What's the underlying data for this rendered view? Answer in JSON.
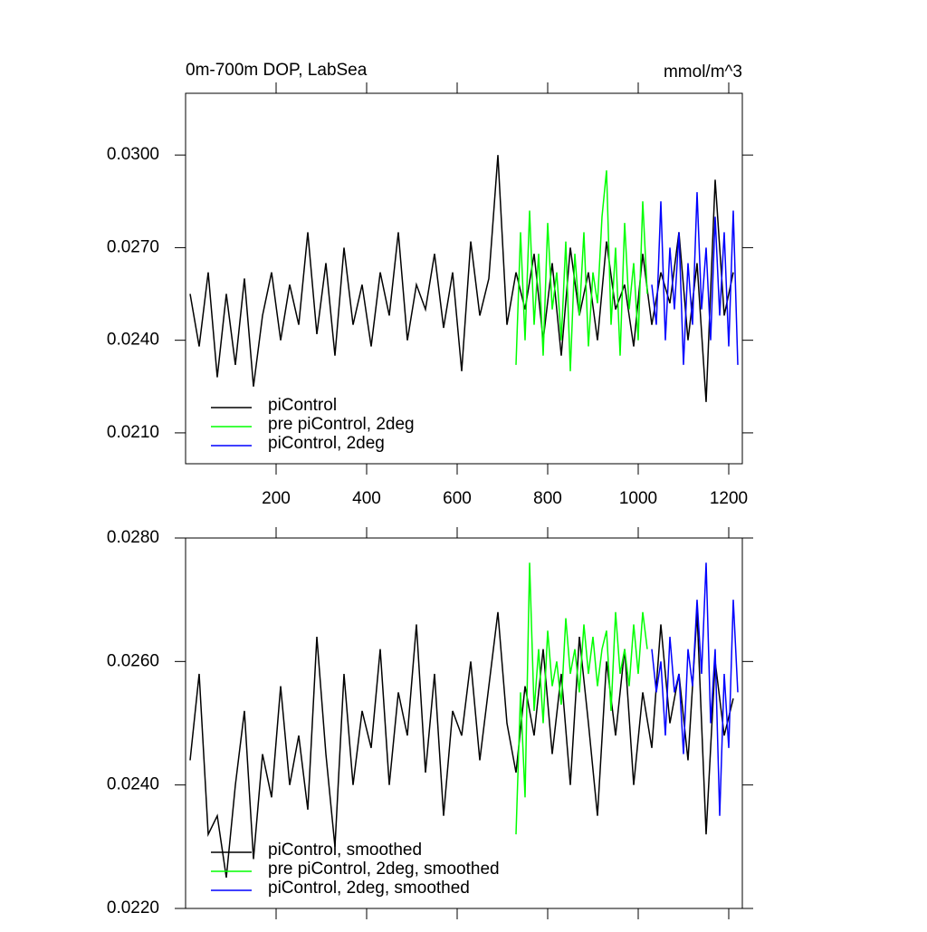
{
  "chart_data": [
    {
      "type": "line",
      "title": "0m-700m DOP, LabSea",
      "units": "mmol/m^3",
      "xlim": [
        0,
        1230
      ],
      "xticks": [
        200,
        400,
        600,
        800,
        1000,
        1200
      ],
      "xtick_labels": true,
      "ylim": [
        0.02,
        0.032
      ],
      "yticks": [
        {
          "value": 0.021,
          "label": "0.0210"
        },
        {
          "value": 0.024,
          "label": "0.0240"
        },
        {
          "value": 0.027,
          "label": "0.0270"
        },
        {
          "value": 0.03,
          "label": "0.0300"
        }
      ],
      "legend": "lower left",
      "series": [
        {
          "name": "piControl",
          "color": "#000000",
          "x": [
            10,
            30,
            50,
            70,
            90,
            110,
            130,
            150,
            170,
            190,
            210,
            230,
            250,
            270,
            290,
            310,
            330,
            350,
            370,
            390,
            410,
            430,
            450,
            470,
            490,
            510,
            530,
            550,
            570,
            590,
            610,
            630,
            650,
            670,
            690,
            710,
            730,
            750,
            770,
            790,
            810,
            830,
            850,
            870,
            890,
            910,
            930,
            950,
            970,
            990,
            1010,
            1030,
            1050,
            1070,
            1090,
            1110,
            1130,
            1150,
            1170,
            1190,
            1210
          ],
          "values": [
            0.0255,
            0.0238,
            0.0262,
            0.0228,
            0.0255,
            0.0232,
            0.026,
            0.0225,
            0.0248,
            0.0262,
            0.024,
            0.0258,
            0.0245,
            0.0275,
            0.0242,
            0.0265,
            0.0235,
            0.027,
            0.0245,
            0.0258,
            0.0238,
            0.0262,
            0.0248,
            0.0275,
            0.024,
            0.0258,
            0.025,
            0.0268,
            0.0244,
            0.0262,
            0.023,
            0.0272,
            0.0248,
            0.026,
            0.03,
            0.0245,
            0.0262,
            0.025,
            0.0268,
            0.024,
            0.0265,
            0.0235,
            0.027,
            0.0248,
            0.0262,
            0.024,
            0.0272,
            0.025,
            0.0258,
            0.0238,
            0.0268,
            0.0245,
            0.0262,
            0.0252,
            0.0275,
            0.024,
            0.0265,
            0.022,
            0.0292,
            0.0248,
            0.0262
          ]
        },
        {
          "name": "pre piControl, 2deg",
          "color": "#00ff00",
          "x": [
            730,
            740,
            750,
            760,
            770,
            780,
            790,
            800,
            810,
            820,
            830,
            840,
            850,
            860,
            870,
            880,
            890,
            900,
            910,
            920,
            930,
            940,
            950,
            960,
            970,
            980,
            990,
            1000,
            1010,
            1020
          ],
          "values": [
            0.0232,
            0.0275,
            0.024,
            0.0282,
            0.0245,
            0.0268,
            0.0235,
            0.0278,
            0.025,
            0.0262,
            0.024,
            0.0272,
            0.023,
            0.0268,
            0.0248,
            0.0275,
            0.0238,
            0.0262,
            0.0252,
            0.028,
            0.0295,
            0.0245,
            0.027,
            0.0235,
            0.0278,
            0.025,
            0.0265,
            0.024,
            0.0285,
            0.0255
          ]
        },
        {
          "name": "piControl, 2deg",
          "color": "#0000ff",
          "x": [
            1030,
            1040,
            1050,
            1060,
            1070,
            1080,
            1090,
            1100,
            1110,
            1120,
            1130,
            1140,
            1150,
            1160,
            1170,
            1180,
            1190,
            1200,
            1210,
            1220
          ],
          "values": [
            0.0258,
            0.0245,
            0.0285,
            0.024,
            0.027,
            0.025,
            0.0275,
            0.0232,
            0.0265,
            0.0245,
            0.0288,
            0.025,
            0.027,
            0.024,
            0.028,
            0.0248,
            0.0275,
            0.0238,
            0.0282,
            0.0232
          ]
        }
      ]
    },
    {
      "type": "line",
      "xlim": [
        0,
        1230
      ],
      "xticks": [
        200,
        400,
        600,
        800,
        1000,
        1200
      ],
      "xtick_labels": false,
      "ylim": [
        0.022,
        0.028
      ],
      "yticks": [
        {
          "value": 0.022,
          "label": "0.0220"
        },
        {
          "value": 0.024,
          "label": "0.0240"
        },
        {
          "value": 0.026,
          "label": "0.0260"
        },
        {
          "value": 0.028,
          "label": "0.0280"
        }
      ],
      "legend": "lower left",
      "series": [
        {
          "name": "piControl, smoothed",
          "color": "#000000",
          "x": [
            10,
            30,
            50,
            70,
            90,
            110,
            130,
            150,
            170,
            190,
            210,
            230,
            250,
            270,
            290,
            310,
            330,
            350,
            370,
            390,
            410,
            430,
            450,
            470,
            490,
            510,
            530,
            550,
            570,
            590,
            610,
            630,
            650,
            670,
            690,
            710,
            730,
            750,
            770,
            790,
            810,
            830,
            850,
            870,
            890,
            910,
            930,
            950,
            970,
            990,
            1010,
            1030,
            1050,
            1070,
            1090,
            1110,
            1130,
            1150,
            1170,
            1190,
            1210
          ],
          "values": [
            0.0244,
            0.0258,
            0.0232,
            0.0235,
            0.0225,
            0.024,
            0.0252,
            0.0228,
            0.0245,
            0.0238,
            0.0256,
            0.024,
            0.0248,
            0.0236,
            0.0264,
            0.0245,
            0.023,
            0.0258,
            0.024,
            0.0252,
            0.0246,
            0.0262,
            0.024,
            0.0255,
            0.0248,
            0.0266,
            0.0242,
            0.0258,
            0.0235,
            0.0252,
            0.0248,
            0.026,
            0.0244,
            0.0256,
            0.0268,
            0.025,
            0.0242,
            0.0256,
            0.0248,
            0.0262,
            0.0245,
            0.0258,
            0.024,
            0.0264,
            0.025,
            0.0235,
            0.026,
            0.0248,
            0.0262,
            0.024,
            0.0255,
            0.0246,
            0.0266,
            0.025,
            0.0258,
            0.0244,
            0.0268,
            0.0232,
            0.026,
            0.0248,
            0.0254
          ]
        },
        {
          "name": "pre piControl, 2deg, smoothed",
          "color": "#00ff00",
          "x": [
            730,
            740,
            750,
            760,
            770,
            780,
            790,
            800,
            810,
            820,
            830,
            840,
            850,
            860,
            870,
            880,
            890,
            900,
            910,
            920,
            930,
            940,
            950,
            960,
            970,
            980,
            990,
            1000,
            1010,
            1020
          ],
          "values": [
            0.0232,
            0.0255,
            0.0238,
            0.0276,
            0.0252,
            0.0262,
            0.025,
            0.0265,
            0.0256,
            0.026,
            0.0253,
            0.0267,
            0.0258,
            0.0262,
            0.0255,
            0.0266,
            0.0258,
            0.0264,
            0.0256,
            0.0262,
            0.0265,
            0.0252,
            0.0268,
            0.0258,
            0.0262,
            0.0256,
            0.0266,
            0.0258,
            0.0268,
            0.0262
          ]
        },
        {
          "name": "piControl, 2deg, smoothed",
          "color": "#0000ff",
          "x": [
            1030,
            1040,
            1050,
            1060,
            1070,
            1080,
            1090,
            1100,
            1110,
            1120,
            1130,
            1140,
            1150,
            1160,
            1170,
            1180,
            1190,
            1200,
            1210,
            1220
          ],
          "values": [
            0.0262,
            0.0255,
            0.026,
            0.0248,
            0.0264,
            0.0255,
            0.0258,
            0.0245,
            0.0262,
            0.0256,
            0.027,
            0.0258,
            0.0276,
            0.025,
            0.0262,
            0.0235,
            0.0258,
            0.0246,
            0.027,
            0.0255
          ]
        }
      ]
    }
  ]
}
